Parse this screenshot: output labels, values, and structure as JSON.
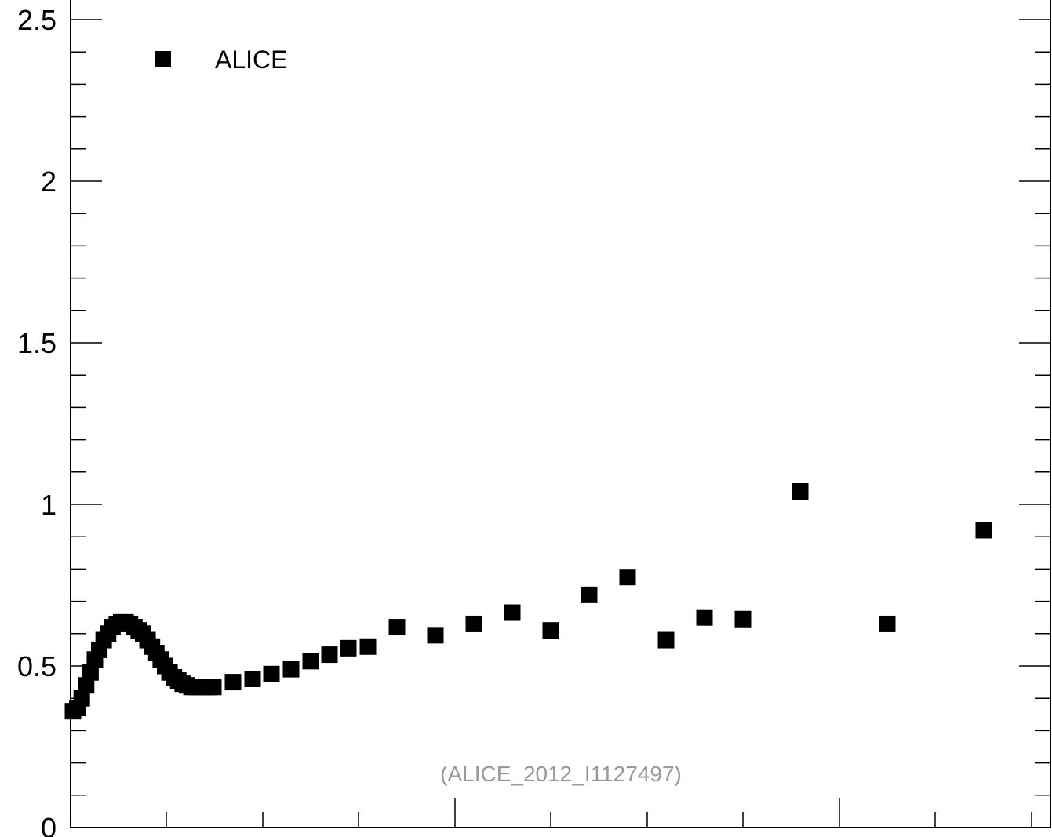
{
  "chart_data": {
    "type": "scatter",
    "title": "",
    "xlabel": "",
    "ylabel": "",
    "ylim": [
      0,
      2.5
    ],
    "yticks": [
      0,
      0.5,
      1,
      1.5,
      2,
      2.5
    ],
    "ytick_labels": [
      "0",
      "0.5",
      "1",
      "1.5",
      "2",
      "2.5"
    ],
    "series": [
      {
        "name": "ALICE",
        "marker": "square",
        "color": "#000000",
        "values": [
          0.36,
          0.37,
          0.4,
          0.44,
          0.48,
          0.52,
          0.55,
          0.58,
          0.6,
          0.62,
          0.63,
          0.635,
          0.635,
          0.63,
          0.62,
          0.61,
          0.6,
          0.58,
          0.56,
          0.54,
          0.52,
          0.5,
          0.48,
          0.465,
          0.455,
          0.445,
          0.44,
          0.435,
          0.435,
          0.435,
          0.435,
          0.435,
          0.435,
          0.45,
          0.46,
          0.475,
          0.49,
          0.515,
          0.535,
          0.555,
          0.56,
          0.62,
          0.595,
          0.63,
          0.665,
          0.61,
          0.72,
          0.775,
          0.58,
          0.65,
          0.645,
          1.04,
          0.63,
          0.92
        ]
      }
    ],
    "annotation": "(ALICE_2012_I1127497)"
  }
}
